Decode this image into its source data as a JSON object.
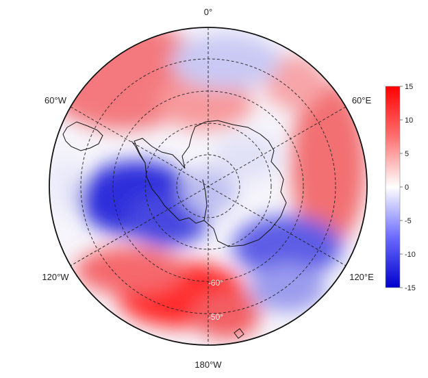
{
  "map": {
    "projection": "south-polar-stereographic",
    "longitude_labels": {
      "top": "0°",
      "upper_right": "60°E",
      "lower_right": "120°E",
      "bottom": "180°W",
      "lower_left": "120°W",
      "upper_left": "60°W"
    },
    "latitude_labels": {
      "inner": "-60°",
      "outer": "-50°"
    },
    "colorbar": {
      "min": -15,
      "max": 15,
      "ticks": [
        "15",
        "10",
        "5",
        "0",
        "-5",
        "-10",
        "-15"
      ],
      "colors": {
        "high": "#ff0000",
        "mid": "#ffffff",
        "low": "#0000cc"
      }
    },
    "anomaly_blobs": [
      {
        "sign": "negative",
        "region": "Amundsen-Bellingshausen Sea / West Antarctica",
        "strength": -13
      },
      {
        "sign": "positive",
        "region": "South Pacific near 160°W, 55°S",
        "strength": 14
      },
      {
        "sign": "positive",
        "region": "South Atlantic near 45°W, 45°S",
        "strength": 8
      },
      {
        "sign": "positive",
        "region": "Indian Ocean near 70°E",
        "strength": 9
      },
      {
        "sign": "positive",
        "region": "Weddell Sea / Queen Maud Land coast",
        "strength": 7
      },
      {
        "sign": "negative",
        "region": "Southern Ocean near 0°, 45°S",
        "strength": -5
      },
      {
        "sign": "negative",
        "region": "East Antarctic coast near 120°E",
        "strength": -10
      },
      {
        "sign": "negative",
        "region": "Ross Sea sector near 160°E",
        "strength": -5
      }
    ]
  }
}
